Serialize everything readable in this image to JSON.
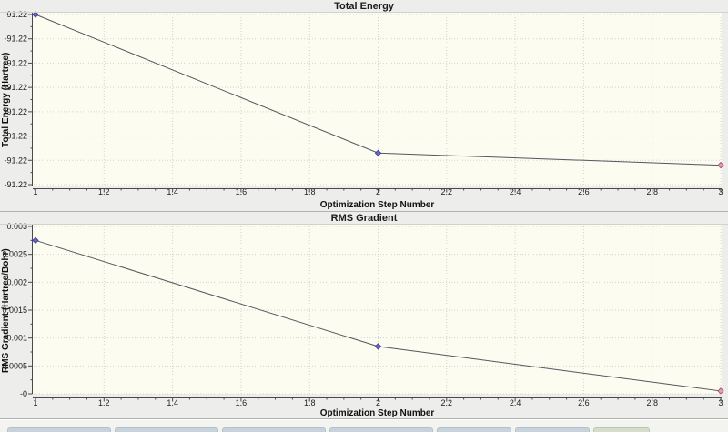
{
  "chart_data": [
    {
      "type": "line",
      "title": "Total Energy",
      "xlabel": "Optimization Step Number",
      "ylabel": "Total Energy (Hartree)",
      "x": [
        1,
        2,
        3
      ],
      "y": [
        -91.22,
        -91.22285,
        -91.2231
      ],
      "xlim": [
        1,
        3
      ],
      "ylim": [
        -91.2235,
        -91.22
      ],
      "x_tick_values": [
        1,
        1.2,
        1.4,
        1.6,
        1.8,
        2,
        2.2,
        2.4,
        2.6,
        2.8,
        3
      ],
      "x_tick_labels": [
        "1",
        "1.2",
        "1.4",
        "1.6",
        "1.8",
        "2",
        "2.2",
        "2.4",
        "2.6",
        "2.8",
        "3"
      ],
      "y_tick_labels": [
        "-91.22",
        "-91.22",
        "-91.22",
        "-91.22",
        "-91.22",
        "-91.22",
        "-91.22",
        "-91.22"
      ],
      "grid": true,
      "legend": false,
      "plot_bg": "#fcfcf0",
      "grid_color": "#d4d4c8",
      "line_color": "#56565e",
      "markers": [
        {
          "stroke": "#3f3fa8",
          "fill": "#6b6bc2"
        },
        {
          "stroke": "#3f3fa8",
          "fill": "#6b6bc2"
        },
        {
          "stroke": "#b0517c",
          "fill": "#e0a6bd"
        }
      ]
    },
    {
      "type": "line",
      "title": "RMS Gradient",
      "xlabel": "Optimization Step Number",
      "ylabel": "RMS Gradient (Hartree/Bohr)",
      "x": [
        1,
        2,
        3
      ],
      "y": [
        0.00275,
        0.00085,
        5e-05
      ],
      "xlim": [
        1,
        3
      ],
      "ylim": [
        0,
        0.003
      ],
      "x_tick_values": [
        1,
        1.2,
        1.4,
        1.6,
        1.8,
        2,
        2.2,
        2.4,
        2.6,
        2.8,
        3
      ],
      "x_tick_labels": [
        "1",
        "1.2",
        "1.4",
        "1.6",
        "1.8",
        "2",
        "2.2",
        "2.4",
        "2.6",
        "2.8",
        "3"
      ],
      "y_tick_labels": [
        "0.003",
        "0.0025",
        "0.002",
        "0.0015",
        "0.001",
        "0.0005",
        "-0"
      ],
      "grid": true,
      "legend": false,
      "plot_bg": "#fcfcf0",
      "grid_color": "#d4d4c8",
      "line_color": "#56565e",
      "markers": [
        {
          "stroke": "#3f3fa8",
          "fill": "#6b6bc2"
        },
        {
          "stroke": "#3f3fa8",
          "fill": "#6b6bc2"
        },
        {
          "stroke": "#b0517c",
          "fill": "#e0a6bd"
        }
      ]
    }
  ]
}
